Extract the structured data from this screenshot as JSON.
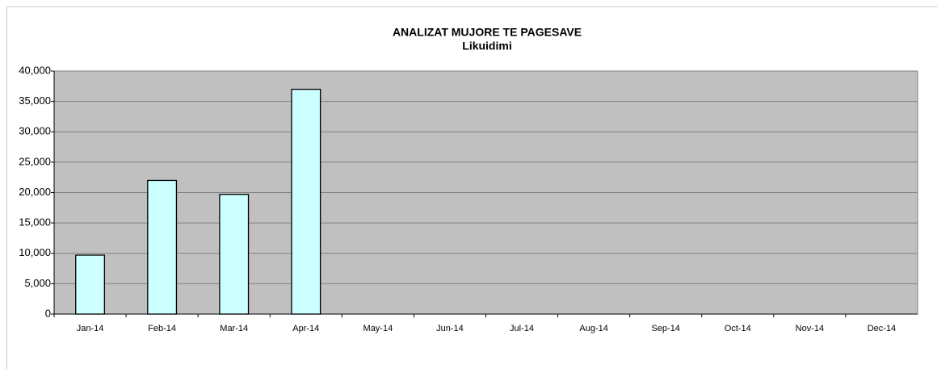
{
  "chart_data": {
    "type": "bar",
    "title": "ANALIZAT MUJORE TE PAGESAVE",
    "subtitle": "Likuidimi",
    "categories": [
      "Jan-14",
      "Feb-14",
      "Mar-14",
      "Apr-14",
      "May-14",
      "Jun-14",
      "Jul-14",
      "Aug-14",
      "Sep-14",
      "Oct-14",
      "Nov-14",
      "Dec-14"
    ],
    "values": [
      9700,
      22000,
      19700,
      37000,
      null,
      null,
      null,
      null,
      null,
      null,
      null,
      null
    ],
    "color": "#ccffff",
    "ylim": [
      0,
      40000
    ],
    "yticks": [
      0,
      {
        "value": 5000,
        "label": "5,000"
      },
      {
        "value": 10000,
        "label": "10,000"
      },
      {
        "value": 15000,
        "label": "15,000"
      },
      {
        "value": 20000,
        "label": "20,000"
      },
      {
        "value": 25000,
        "label": "25,000"
      },
      {
        "value": 30000,
        "label": "30,000"
      },
      {
        "value": 35000,
        "label": "35,000"
      },
      {
        "value": 40000,
        "label": "40,000"
      }
    ],
    "grid": true
  }
}
